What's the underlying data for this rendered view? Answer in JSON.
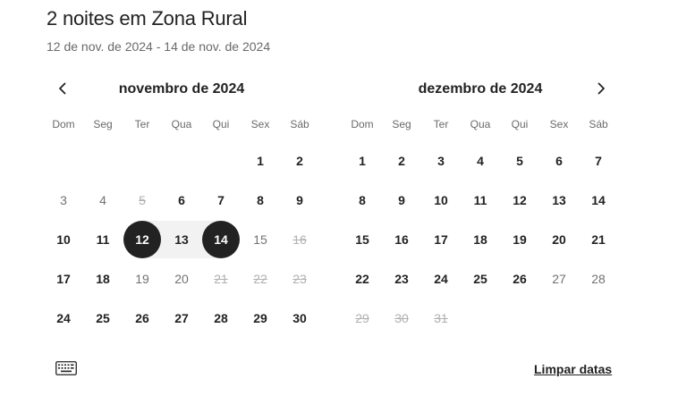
{
  "header": {
    "title": "2 noites em Zona Rural",
    "subtitle": "12 de nov. de 2024 - 14 de nov. de 2024"
  },
  "nav": {
    "prev_icon": "chevron-left-icon",
    "next_icon": "chevron-right-icon"
  },
  "weekdays": [
    "Dom",
    "Seg",
    "Ter",
    "Qua",
    "Qui",
    "Sex",
    "Sáb"
  ],
  "months": [
    {
      "name": "novembro de 2024",
      "start_weekday": 5,
      "days": [
        {
          "d": "1",
          "s": "available"
        },
        {
          "d": "2",
          "s": "available"
        },
        {
          "d": "3",
          "s": "muted"
        },
        {
          "d": "4",
          "s": "muted"
        },
        {
          "d": "5",
          "s": "disabled"
        },
        {
          "d": "6",
          "s": "available"
        },
        {
          "d": "7",
          "s": "available"
        },
        {
          "d": "8",
          "s": "available"
        },
        {
          "d": "9",
          "s": "available"
        },
        {
          "d": "10",
          "s": "available"
        },
        {
          "d": "11",
          "s": "available"
        },
        {
          "d": "12",
          "s": "selected"
        },
        {
          "d": "13",
          "s": "in-range"
        },
        {
          "d": "14",
          "s": "selected"
        },
        {
          "d": "15",
          "s": "muted"
        },
        {
          "d": "16",
          "s": "disabled"
        },
        {
          "d": "17",
          "s": "available"
        },
        {
          "d": "18",
          "s": "available"
        },
        {
          "d": "19",
          "s": "muted"
        },
        {
          "d": "20",
          "s": "muted"
        },
        {
          "d": "21",
          "s": "disabled"
        },
        {
          "d": "22",
          "s": "disabled"
        },
        {
          "d": "23",
          "s": "disabled"
        },
        {
          "d": "24",
          "s": "available"
        },
        {
          "d": "25",
          "s": "available"
        },
        {
          "d": "26",
          "s": "available"
        },
        {
          "d": "27",
          "s": "available"
        },
        {
          "d": "28",
          "s": "available"
        },
        {
          "d": "29",
          "s": "available"
        },
        {
          "d": "30",
          "s": "available"
        }
      ]
    },
    {
      "name": "dezembro de 2024",
      "start_weekday": 0,
      "days": [
        {
          "d": "1",
          "s": "available"
        },
        {
          "d": "2",
          "s": "available"
        },
        {
          "d": "3",
          "s": "available"
        },
        {
          "d": "4",
          "s": "available"
        },
        {
          "d": "5",
          "s": "available"
        },
        {
          "d": "6",
          "s": "available"
        },
        {
          "d": "7",
          "s": "available"
        },
        {
          "d": "8",
          "s": "available"
        },
        {
          "d": "9",
          "s": "available"
        },
        {
          "d": "10",
          "s": "available"
        },
        {
          "d": "11",
          "s": "available"
        },
        {
          "d": "12",
          "s": "available"
        },
        {
          "d": "13",
          "s": "available"
        },
        {
          "d": "14",
          "s": "available"
        },
        {
          "d": "15",
          "s": "available"
        },
        {
          "d": "16",
          "s": "available"
        },
        {
          "d": "17",
          "s": "available"
        },
        {
          "d": "18",
          "s": "available"
        },
        {
          "d": "19",
          "s": "available"
        },
        {
          "d": "20",
          "s": "available"
        },
        {
          "d": "21",
          "s": "available"
        },
        {
          "d": "22",
          "s": "available"
        },
        {
          "d": "23",
          "s": "available"
        },
        {
          "d": "24",
          "s": "available"
        },
        {
          "d": "25",
          "s": "available"
        },
        {
          "d": "26",
          "s": "available"
        },
        {
          "d": "27",
          "s": "muted"
        },
        {
          "d": "28",
          "s": "muted"
        },
        {
          "d": "29",
          "s": "disabled"
        },
        {
          "d": "30",
          "s": "disabled"
        },
        {
          "d": "31",
          "s": "disabled"
        }
      ]
    }
  ],
  "footer": {
    "keyboard_icon": "keyboard-icon",
    "clear_label": "Limpar datas"
  },
  "colors": {
    "text": "#222222",
    "muted": "#6a6a6a",
    "disabled": "#b0b0b0",
    "selected_bg": "#222222",
    "range_bg": "#f2f2f2"
  }
}
